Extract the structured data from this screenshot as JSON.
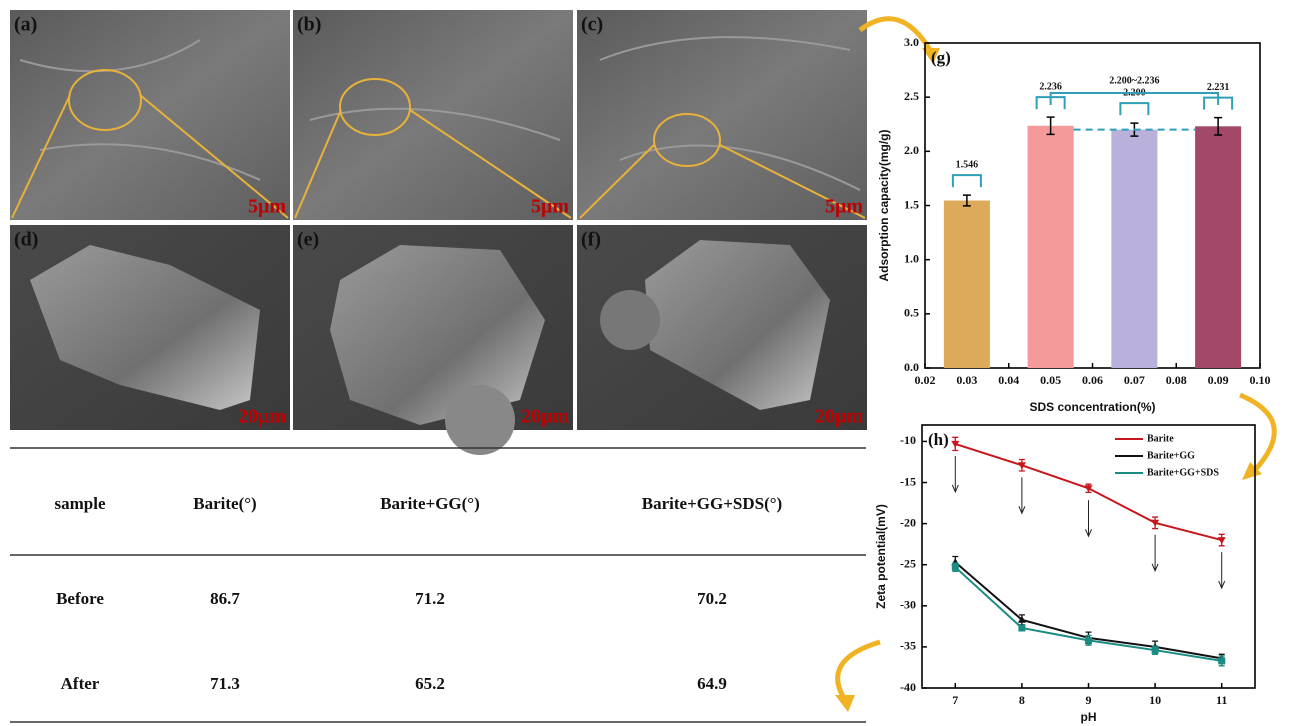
{
  "panels": [
    {
      "label": "(a)",
      "scale": "5μm"
    },
    {
      "label": "(b)",
      "scale": "5μm"
    },
    {
      "label": "(c)",
      "scale": "5μm"
    },
    {
      "label": "(d)",
      "scale": "20μm"
    },
    {
      "label": "(e)",
      "scale": "20μm"
    },
    {
      "label": "(f)",
      "scale": "20μm"
    }
  ],
  "table": {
    "header": [
      "sample",
      "Barite(°)",
      "Barite+GG(°)",
      "Barite+GG+SDS(°)"
    ],
    "rows": [
      [
        "Before",
        86.7,
        71.2,
        70.2
      ],
      [
        "After",
        71.3,
        65.2,
        64.9
      ]
    ]
  },
  "chart_data": [
    {
      "type": "bar",
      "label": "(g)",
      "x_label": "SDS concentration(%)",
      "y_label": "Adsorption capacity(mg/g)",
      "x": [
        0.03,
        0.05,
        0.07,
        0.09
      ],
      "values": [
        1.546,
        2.236,
        2.2,
        2.231
      ],
      "value_labels": [
        "1.546",
        "2.236",
        "2.200",
        "2.231"
      ],
      "errors": [
        0.05,
        0.08,
        0.06,
        0.08
      ],
      "colors": [
        "#dcaa5a",
        "#f59a9a",
        "#b9b0dc",
        "#a24868"
      ],
      "annotation": "2.200~2.236",
      "xlim": [
        0.02,
        0.1
      ],
      "xticks": [
        0.02,
        0.03,
        0.04,
        0.05,
        0.06,
        0.07,
        0.08,
        0.09,
        {
          "value": 0.1,
          "label": "0.10"
        }
      ],
      "ylim": [
        0,
        3
      ],
      "yticks": [
        {
          "value": 0,
          "label": "0.0"
        },
        0.5,
        {
          "value": 1,
          "label": "1.0"
        },
        1.5,
        {
          "value": 2,
          "label": "2.0"
        },
        2.5,
        {
          "value": 3,
          "label": "3.0"
        }
      ]
    },
    {
      "type": "line",
      "label": "(h)",
      "x_label": "pH",
      "y_label": "Zeta potential(mV)",
      "legend": "upper right",
      "x": [
        7,
        8,
        9,
        10,
        11
      ],
      "series": [
        {
          "name": "Barite",
          "color": "#c8161d",
          "values": [
            -10.3,
            -12.9,
            -15.7,
            -19.9,
            -22.0
          ],
          "errors": [
            0.8,
            0.7,
            0.5,
            0.7,
            0.7
          ]
        },
        {
          "name": "Barite+GG",
          "color": "#111111",
          "values": [
            -24.7,
            -31.7,
            -33.9,
            -35.0,
            -36.4
          ],
          "errors": [
            0.7,
            0.6,
            0.7,
            0.7,
            0.5
          ]
        },
        {
          "name": "Barite+GG+SDS",
          "color": "#1a8c82",
          "values": [
            -25.3,
            -32.7,
            -34.2,
            -35.4,
            -36.7
          ],
          "errors": [
            0.5,
            0.3,
            0.6,
            0.5,
            0.6
          ]
        }
      ],
      "xlim": [
        6.5,
        11.5
      ],
      "xticks": [
        7,
        8,
        9,
        10,
        11
      ],
      "ylim": [
        -40,
        -8
      ],
      "yticks": [
        -10,
        -15,
        -20,
        -25,
        -30,
        -35,
        -40
      ]
    }
  ]
}
